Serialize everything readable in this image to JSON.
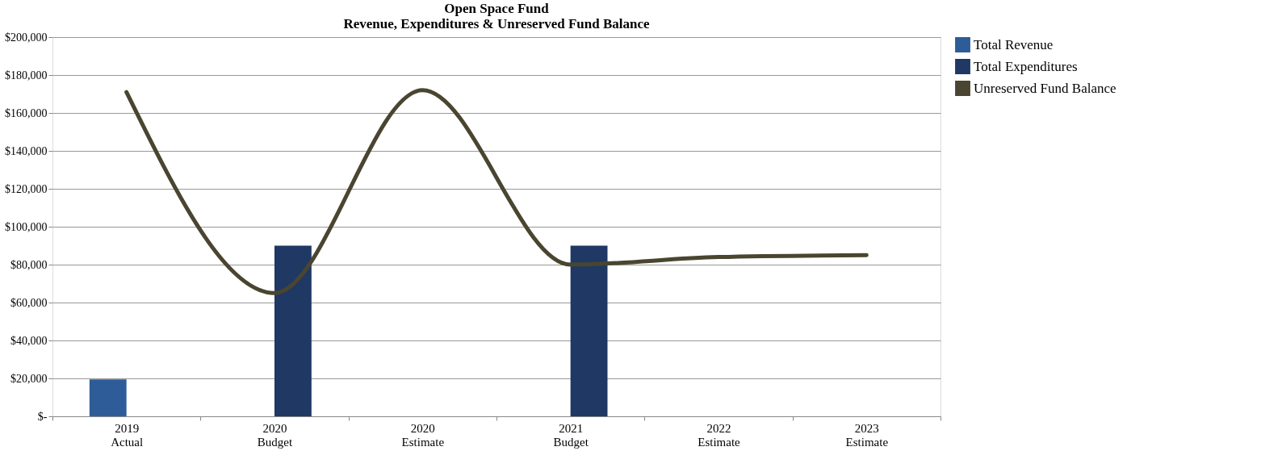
{
  "chart_data": {
    "type": "bar",
    "title": [
      "Open Space Fund",
      "Revenue, Expenditures & Unreserved Fund Balance"
    ],
    "categories": [
      "2019\nActual",
      "2020\nBudget",
      "2020\nEstimate",
      "2021\nBudget",
      "2022\nEstimate",
      "2023\nEstimate"
    ],
    "series": [
      {
        "name": "Total Revenue",
        "color": "#2e5c99",
        "values": [
          19500,
          0,
          0,
          0,
          0,
          0
        ]
      },
      {
        "name": "Total Expenditures",
        "color": "#1f3864",
        "values": [
          0,
          90000,
          0,
          90000,
          0,
          0
        ]
      },
      {
        "name": "Unreserved Fund Balance",
        "type": "line",
        "color": "#4a4530",
        "values": [
          171000,
          65000,
          172000,
          80000,
          84000,
          85000
        ]
      }
    ],
    "ylim": [
      0,
      200000
    ],
    "yticks": [
      {
        "value": 0,
        "label": "$-"
      },
      {
        "value": 20000,
        "label": "$20,000"
      },
      {
        "value": 40000,
        "label": "$40,000"
      },
      {
        "value": 60000,
        "label": "$60,000"
      },
      {
        "value": 80000,
        "label": "$80,000"
      },
      {
        "value": 100000,
        "label": "$100,000"
      },
      {
        "value": 120000,
        "label": "$120,000"
      },
      {
        "value": 140000,
        "label": "$140,000"
      },
      {
        "value": 160000,
        "label": "$160,000"
      },
      {
        "value": 180000,
        "label": "$180,000"
      },
      {
        "value": 200000,
        "label": "$200,000"
      }
    ],
    "grid": "y",
    "legend": "right"
  }
}
